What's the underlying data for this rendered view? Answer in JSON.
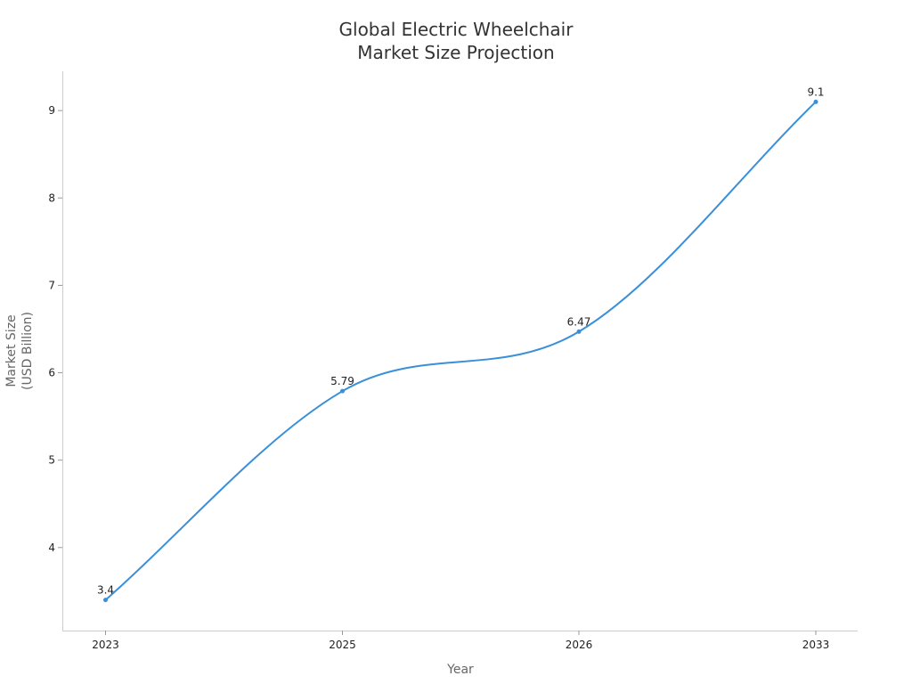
{
  "chart_data": {
    "type": "line",
    "title_lines": [
      "Global Electric Wheelchair",
      "Market Size Projection"
    ],
    "xlabel": "Year",
    "ylabel_lines": [
      "Market Size",
      "(USD Billion)"
    ],
    "categories": [
      "2023",
      "2025",
      "2026",
      "2033"
    ],
    "series": [
      {
        "values": [
          3.4,
          5.79,
          6.47,
          9.1
        ],
        "color": "#3a8fd9"
      }
    ],
    "data_labels": [
      "3.4",
      "5.79",
      "6.47",
      "9.1"
    ],
    "yticks": [
      "4",
      "5",
      "6",
      "7",
      "8",
      "9"
    ],
    "ylim": [
      3.05,
      9.45
    ],
    "grid": false,
    "smooth": true
  }
}
